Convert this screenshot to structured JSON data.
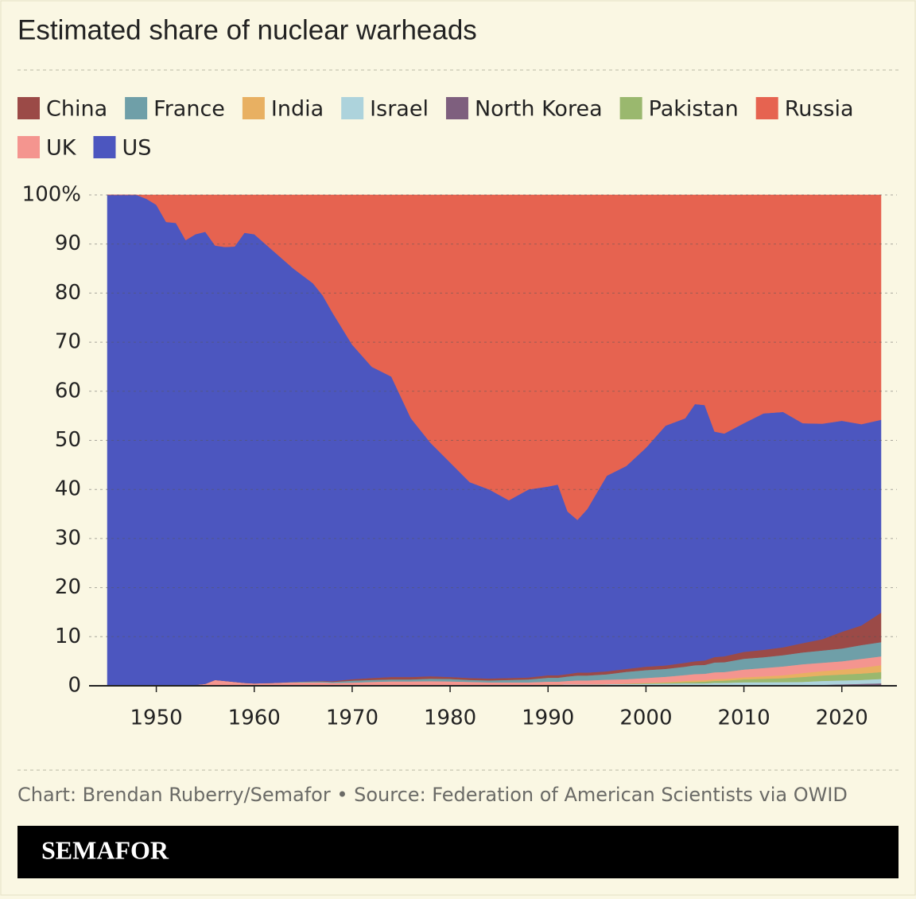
{
  "chart_data": {
    "type": "stacked_area",
    "title": "Estimated share of nuclear warheads",
    "source": "Chart: Brendan Ruberry/Semafor • Source: Federation of American Scientists via OWID",
    "brand": "SEMAFOR",
    "x": [
      1945,
      1948,
      1949,
      1950,
      1951,
      1952,
      1953,
      1954,
      1955,
      1956,
      1957,
      1958,
      1959,
      1960,
      1962,
      1964,
      1966,
      1967,
      1968,
      1970,
      1972,
      1974,
      1976,
      1978,
      1980,
      1982,
      1984,
      1986,
      1988,
      1990,
      1991,
      1992,
      1993,
      1994,
      1996,
      1998,
      2000,
      2002,
      2004,
      2005,
      2006,
      2007,
      2008,
      2010,
      2012,
      2014,
      2016,
      2018,
      2020,
      2022,
      2024
    ],
    "series": [
      {
        "name": "China",
        "color": "#9b4a47",
        "values": [
          0,
          0,
          0,
          0,
          0,
          0,
          0,
          0,
          0,
          0,
          0,
          0,
          0,
          0,
          0,
          0,
          0.05,
          0.1,
          0.15,
          0.3,
          0.4,
          0.5,
          0.5,
          0.5,
          0.4,
          0.4,
          0.4,
          0.4,
          0.4,
          0.5,
          0.5,
          0.5,
          0.6,
          0.6,
          0.6,
          0.6,
          0.7,
          0.7,
          0.8,
          0.8,
          0.9,
          1.1,
          1.2,
          1.4,
          1.5,
          1.6,
          1.9,
          2.3,
          3.4,
          4.0,
          6.0
        ]
      },
      {
        "name": "France",
        "color": "#6f9fa8",
        "values": [
          0,
          0,
          0,
          0,
          0,
          0,
          0,
          0,
          0,
          0,
          0,
          0,
          0,
          0,
          0,
          0.1,
          0.2,
          0.2,
          0.2,
          0.4,
          0.4,
          0.4,
          0.4,
          0.5,
          0.5,
          0.4,
          0.4,
          0.5,
          0.6,
          0.8,
          0.8,
          0.9,
          1.0,
          1.0,
          1.1,
          1.5,
          1.6,
          1.6,
          1.7,
          1.8,
          1.8,
          2.0,
          2.0,
          2.2,
          2.2,
          2.3,
          2.4,
          2.5,
          2.6,
          2.8,
          2.9
        ]
      },
      {
        "name": "India",
        "color": "#e8b062",
        "values": [
          0,
          0,
          0,
          0,
          0,
          0,
          0,
          0,
          0,
          0,
          0,
          0,
          0,
          0,
          0,
          0,
          0,
          0,
          0,
          0,
          0,
          0,
          0,
          0,
          0,
          0,
          0,
          0,
          0,
          0,
          0,
          0,
          0,
          0,
          0,
          0.05,
          0.1,
          0.15,
          0.25,
          0.3,
          0.3,
          0.35,
          0.35,
          0.4,
          0.5,
          0.6,
          0.8,
          0.9,
          1.0,
          1.2,
          1.4
        ]
      },
      {
        "name": "Israel",
        "color": "#add3dc",
        "values": [
          0,
          0,
          0,
          0,
          0,
          0,
          0,
          0,
          0,
          0,
          0,
          0,
          0,
          0,
          0,
          0,
          0,
          0,
          0,
          0.05,
          0.1,
          0.1,
          0.1,
          0.15,
          0.2,
          0.2,
          0.2,
          0.2,
          0.2,
          0.25,
          0.25,
          0.3,
          0.3,
          0.3,
          0.35,
          0.35,
          0.4,
          0.45,
          0.5,
          0.5,
          0.5,
          0.6,
          0.6,
          0.7,
          0.7,
          0.7,
          0.7,
          0.8,
          0.8,
          0.8,
          0.9
        ]
      },
      {
        "name": "North Korea",
        "color": "#7e5f7e",
        "values": [
          0,
          0,
          0,
          0,
          0,
          0,
          0,
          0,
          0,
          0,
          0,
          0,
          0,
          0,
          0,
          0,
          0,
          0,
          0,
          0,
          0,
          0,
          0,
          0,
          0,
          0,
          0,
          0,
          0,
          0,
          0,
          0,
          0,
          0,
          0,
          0,
          0,
          0,
          0,
          0,
          0.01,
          0.01,
          0.01,
          0.02,
          0.03,
          0.05,
          0.1,
          0.2,
          0.3,
          0.4,
          0.5
        ]
      },
      {
        "name": "Pakistan",
        "color": "#9ab86e",
        "values": [
          0,
          0,
          0,
          0,
          0,
          0,
          0,
          0,
          0,
          0,
          0,
          0,
          0,
          0,
          0,
          0,
          0,
          0,
          0,
          0,
          0,
          0,
          0,
          0,
          0,
          0,
          0,
          0,
          0,
          0,
          0,
          0,
          0,
          0,
          0,
          0.05,
          0.1,
          0.15,
          0.25,
          0.3,
          0.35,
          0.4,
          0.45,
          0.6,
          0.7,
          0.8,
          1.0,
          1.1,
          1.2,
          1.3,
          1.4
        ]
      },
      {
        "name": "Russia",
        "color": "#e66350",
        "values": [
          0,
          0,
          0.8,
          2,
          5.5,
          5.7,
          9.2,
          8,
          7.5,
          10.3,
          10.6,
          10.5,
          7.7,
          8,
          11.5,
          15,
          18,
          20.5,
          24,
          30.5,
          35,
          37,
          45.5,
          50.5,
          54.5,
          58.5,
          60,
          62.2,
          60,
          59.4,
          59,
          64.5,
          66.2,
          64,
          57.2,
          55.2,
          51.5,
          47,
          45.5,
          42.6,
          42.8,
          48.2,
          48.6,
          46.5,
          44.5,
          44.2,
          46.5,
          46.6,
          46,
          46.7,
          45.8
        ]
      },
      {
        "name": "UK",
        "color": "#f4958f",
        "values": [
          0,
          0,
          0,
          0,
          0,
          0,
          0.1,
          0.2,
          0.4,
          1.2,
          1.0,
          0.8,
          0.6,
          0.5,
          0.6,
          0.7,
          0.7,
          0.7,
          0.6,
          0.6,
          0.7,
          0.8,
          0.8,
          0.8,
          0.7,
          0.6,
          0.5,
          0.5,
          0.5,
          0.6,
          0.6,
          0.7,
          0.8,
          0.8,
          0.9,
          0.9,
          1.0,
          1.1,
          1.2,
          1.3,
          1.3,
          1.4,
          1.4,
          1.6,
          1.7,
          1.8,
          1.8,
          1.7,
          1.7,
          1.8,
          1.8
        ]
      },
      {
        "name": "US",
        "color": "#4c56bf",
        "values": [
          100,
          100,
          99.2,
          98,
          94.5,
          94.3,
          90.7,
          91.8,
          92.1,
          88.5,
          88.4,
          88.7,
          91.7,
          91.5,
          87.9,
          84.2,
          81.05,
          78.5,
          75.05,
          68.15,
          63.4,
          61.2,
          52.7,
          47.55,
          43.7,
          39.9,
          38.5,
          36.2,
          38.3,
          38.45,
          38.85,
          33.1,
          31.1,
          33.3,
          39.85,
          41.35,
          44.6,
          48.85,
          49.8,
          52.4,
          52.04,
          45.94,
          45.39,
          46.58,
          48.17,
          47.95,
          44.8,
          43.9,
          43,
          41,
          39.3
        ]
      }
    ],
    "stack_order": [
      4,
      3,
      5,
      2,
      7,
      1,
      0,
      8,
      6
    ],
    "xlim": [
      1945,
      2024
    ],
    "xticks": [
      1950,
      1960,
      1970,
      1980,
      1990,
      2000,
      2010,
      2020
    ],
    "ylim": [
      0,
      100
    ],
    "yticks": [
      0,
      10,
      20,
      30,
      40,
      50,
      60,
      70,
      80,
      90,
      {
        "value": 100,
        "label": "100%"
      }
    ],
    "grid": true
  }
}
